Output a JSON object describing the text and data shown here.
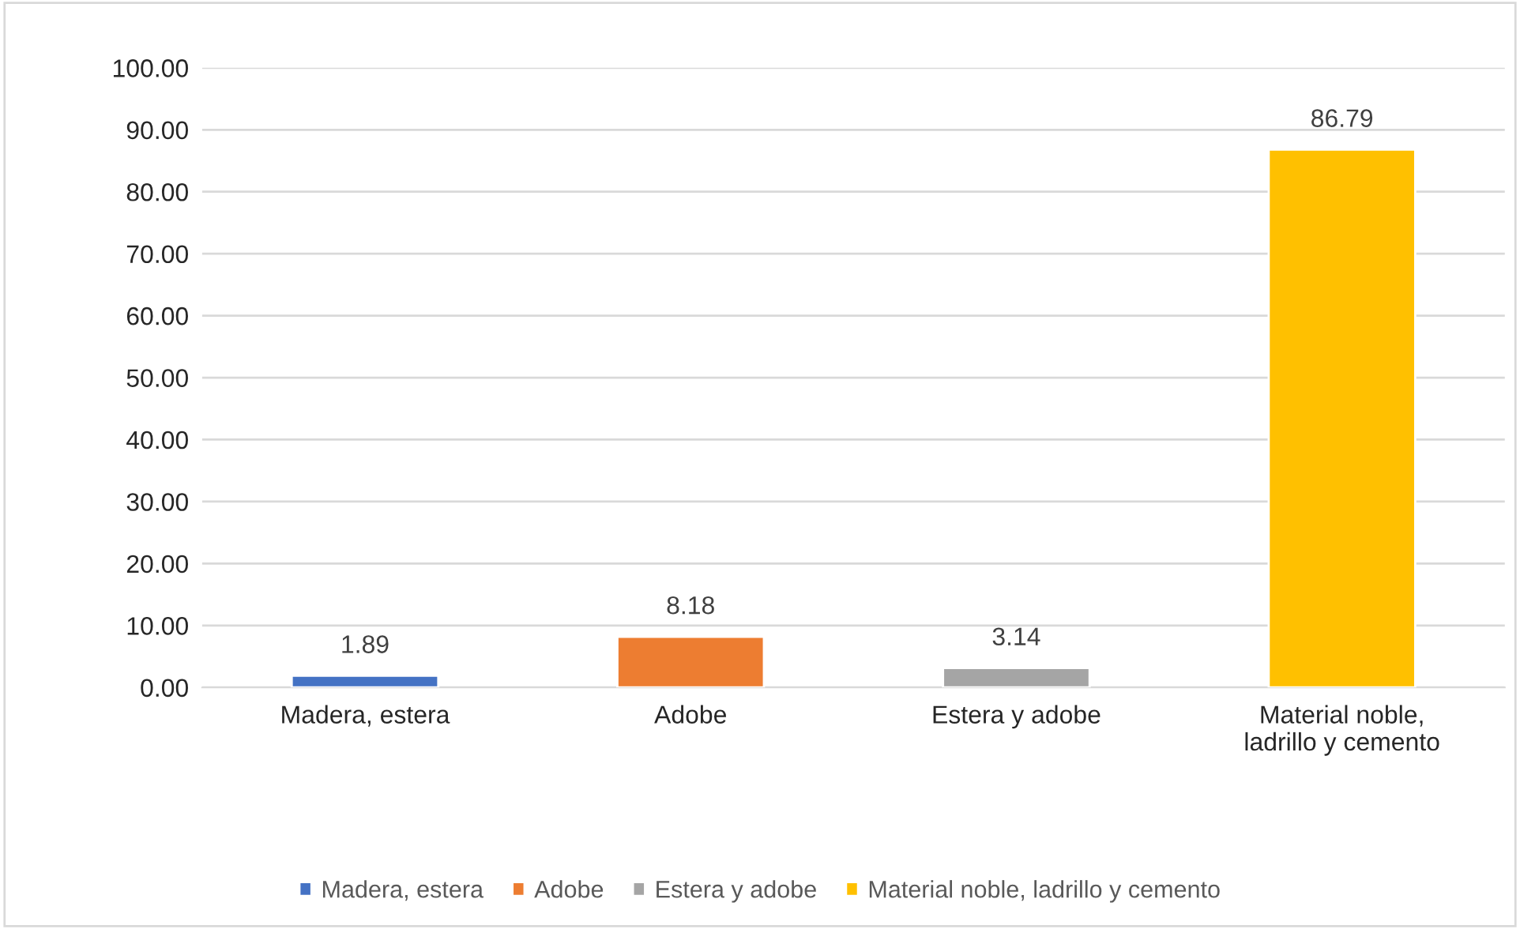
{
  "chart_data": {
    "type": "bar",
    "categories": [
      "Madera, estera",
      "Adobe",
      "Estera y adobe",
      "Material noble, ladrillo y cemento"
    ],
    "series": [
      {
        "name": "Madera, estera",
        "color": "#4472c4",
        "values": [
          1.89,
          null,
          null,
          null
        ]
      },
      {
        "name": "Adobe",
        "color": "#ed7d31",
        "values": [
          null,
          8.18,
          null,
          null
        ]
      },
      {
        "name": "Estera y adobe",
        "color": "#a5a5a5",
        "values": [
          null,
          null,
          3.14,
          null
        ]
      },
      {
        "name": "Material noble, ladrillo y cemento",
        "color": "#ffc000",
        "values": [
          null,
          null,
          null,
          86.79
        ]
      }
    ],
    "ylim": [
      0,
      100
    ],
    "yticks": [
      {
        "value": 0,
        "label": "0.00"
      },
      {
        "value": 10,
        "label": "10.00"
      },
      {
        "value": 20,
        "label": "20.00"
      },
      {
        "value": 30,
        "label": "30.00"
      },
      {
        "value": 40,
        "label": "40.00"
      },
      {
        "value": 50,
        "label": "50.00"
      },
      {
        "value": 60,
        "label": "60.00"
      },
      {
        "value": 70,
        "label": "70.00"
      },
      {
        "value": 80,
        "label": "80.00"
      },
      {
        "value": 90,
        "label": "90.00"
      },
      {
        "value": 100,
        "label": "100.00"
      }
    ],
    "grid": "y",
    "data_labels": true,
    "legend": "bottom"
  }
}
